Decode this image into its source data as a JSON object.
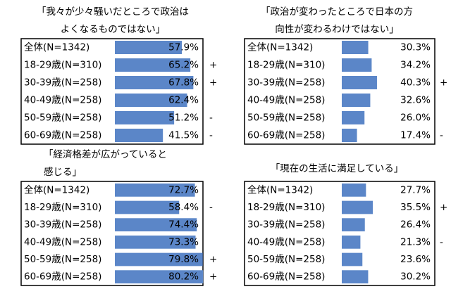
{
  "chart_data": [
    {
      "type": "bar",
      "orientation": "horizontal",
      "title": [
        "「我々が少々騒いだところで政治は",
        "よくなるものではない」"
      ],
      "categories": [
        "全体(N=1342)",
        "18-29歳(N=310)",
        "30-39歳(N=258)",
        "40-49歳(N=258)",
        "50-59歳(N=258)",
        "60-69歳(N=258)"
      ],
      "values": [
        57.9,
        65.2,
        67.8,
        62.4,
        51.2,
        41.5
      ],
      "value_labels": [
        "57.9%",
        "65.2%",
        "67.8%",
        "62.4%",
        "51.2%",
        "41.5%"
      ],
      "markers": [
        null,
        "+",
        "+",
        null,
        "-",
        "-"
      ],
      "color": "#5b86c8",
      "xlim": [
        0,
        70
      ]
    },
    {
      "type": "bar",
      "orientation": "horizontal",
      "title": [
        "「政治が変わったところで日本の方",
        "向性が変わるわけではない」"
      ],
      "categories": [
        "全体(N=1342)",
        "18-29歳(N=310)",
        "30-39歳(N=258)",
        "40-49歳(N=258)",
        "50-59歳(N=258)",
        "60-69歳(N=258)"
      ],
      "values": [
        30.3,
        34.2,
        40.3,
        32.6,
        26.0,
        17.4
      ],
      "value_labels": [
        "30.3%",
        "34.2%",
        "40.3%",
        "32.6%",
        "26.0%",
        "17.4%"
      ],
      "markers": [
        null,
        null,
        "+",
        null,
        null,
        "-"
      ],
      "color": "#5b86c8",
      "xlim": [
        0,
        50
      ]
    },
    {
      "type": "bar",
      "orientation": "horizontal",
      "title": [
        "「経済格差が広がっていると",
        "感じる」"
      ],
      "categories": [
        "全体(N=1342)",
        "18-29歳(N=310)",
        "30-39歳(N=258)",
        "40-49歳(N=258)",
        "50-59歳(N=258)",
        "60-69歳(N=258)"
      ],
      "values": [
        72.7,
        58.4,
        74.4,
        73.3,
        79.8,
        80.2
      ],
      "value_labels": [
        "72.7%",
        "58.4%",
        "74.4%",
        "73.3%",
        "79.8%",
        "80.2%"
      ],
      "markers": [
        null,
        "-",
        null,
        null,
        "+",
        "+"
      ],
      "color": "#5b86c8",
      "xlim": [
        0,
        80
      ]
    },
    {
      "type": "bar",
      "orientation": "horizontal",
      "title": [
        "「現在の生活に満足している」"
      ],
      "categories": [
        "全体(N=1342)",
        "18-29歳(N=310)",
        "30-39歳(N=258)",
        "40-49歳(N=258)",
        "50-59歳(N=258)",
        "60-69歳(N=258)"
      ],
      "values": [
        27.7,
        35.5,
        26.4,
        21.3,
        23.6,
        30.2
      ],
      "value_labels": [
        "27.7%",
        "35.5%",
        "26.4%",
        "21.3%",
        "23.6%",
        "30.2%"
      ],
      "markers": [
        null,
        "+",
        null,
        "-",
        null,
        null
      ],
      "color": "#5b86c8",
      "xlim": [
        0,
        50
      ]
    }
  ]
}
